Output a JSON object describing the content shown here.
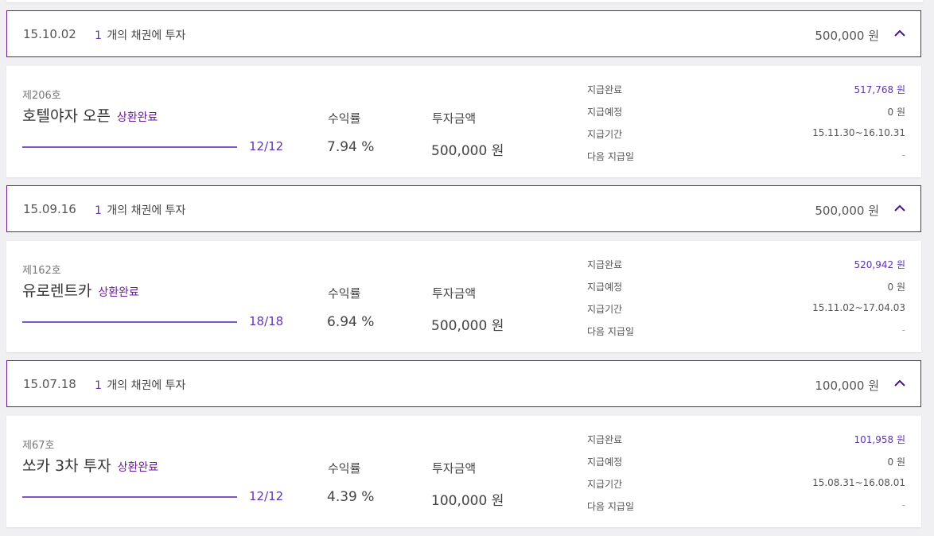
{
  "colors": {
    "accent": "#6a1b9a",
    "accent_light": "#7e57c2",
    "background": "#f0f0f2"
  },
  "groups": [
    {
      "date": "15.10.02",
      "count": "1",
      "count_suffix": "개의 채권에 투자",
      "amount": "500,000 원",
      "chevron_icon": "chevron-up-icon",
      "bond": {
        "number": "제206호",
        "title": "호텔야자 오픈",
        "status": "상환완료",
        "progress_text": "12/12",
        "progress_fraction": 1.0,
        "rate_label": "수익률",
        "rate_value": "7.94 %",
        "amount_label": "투자금액",
        "amount_value": "500,000 원",
        "info": [
          {
            "label": "지급완료",
            "value": "517,768 원"
          },
          {
            "label": "지급예정",
            "value": "0 원"
          },
          {
            "label": "지급기간",
            "value": "15.11.30~16.10.31"
          },
          {
            "label": "다음 지급일",
            "value": "-"
          }
        ]
      }
    },
    {
      "date": "15.09.16",
      "count": "1",
      "count_suffix": "개의 채권에 투자",
      "amount": "500,000 원",
      "chevron_icon": "chevron-up-icon",
      "bond": {
        "number": "제162호",
        "title": "유로렌트카",
        "status": "상환완료",
        "progress_text": "18/18",
        "progress_fraction": 1.0,
        "rate_label": "수익률",
        "rate_value": "6.94 %",
        "amount_label": "투자금액",
        "amount_value": "500,000 원",
        "info": [
          {
            "label": "지급완료",
            "value": "520,942 원"
          },
          {
            "label": "지급예정",
            "value": "0 원"
          },
          {
            "label": "지급기간",
            "value": "15.11.02~17.04.03"
          },
          {
            "label": "다음 지급일",
            "value": "-"
          }
        ]
      }
    },
    {
      "date": "15.07.18",
      "count": "1",
      "count_suffix": "개의 채권에 투자",
      "amount": "100,000 원",
      "chevron_icon": "chevron-up-icon",
      "bond": {
        "number": "제67호",
        "title": "쏘카 3차 투자",
        "status": "상환완료",
        "progress_text": "12/12",
        "progress_fraction": 1.0,
        "rate_label": "수익률",
        "rate_value": "4.39 %",
        "amount_label": "투자금액",
        "amount_value": "100,000 원",
        "info": [
          {
            "label": "지급완료",
            "value": "101,958 원"
          },
          {
            "label": "지급예정",
            "value": "0 원"
          },
          {
            "label": "지급기간",
            "value": "15.08.31~16.08.01"
          },
          {
            "label": "다음 지급일",
            "value": "-"
          }
        ]
      }
    }
  ]
}
